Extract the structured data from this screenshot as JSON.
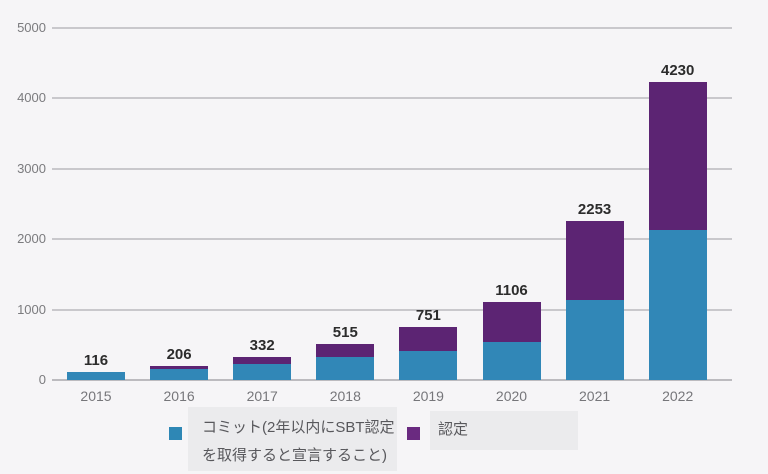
{
  "chart_data": {
    "type": "bar",
    "stacked": true,
    "title": "",
    "xlabel": "",
    "ylabel": "",
    "categories": [
      "2015",
      "2016",
      "2017",
      "2018",
      "2019",
      "2020",
      "2021",
      "2022"
    ],
    "series": [
      {
        "name": "コミット(2年以内にSBT認定を取得すると宣言すること)",
        "color": "#3187b7",
        "values": [
          116,
          160,
          230,
          320,
          415,
          545,
          1140,
          2130
        ]
      },
      {
        "name": "認定",
        "color": "#5c2473",
        "values": [
          0,
          46,
          102,
          195,
          336,
          561,
          1113,
          2100
        ]
      }
    ],
    "total_labels": [
      "116",
      "206",
      "332",
      "515",
      "751",
      "1106",
      "2253",
      "4230"
    ],
    "y_ticks": [
      0,
      1000,
      2000,
      3000,
      4000,
      5000
    ],
    "ylim": [
      0,
      5000
    ],
    "grid": true,
    "legend_position": "bottom"
  },
  "legend": {
    "items": [
      {
        "swatch_color": "#2e87b5",
        "label_line1": "コミット(2年以内にSBT認定",
        "label_line2": "を取得すると宣言すること)"
      },
      {
        "swatch_color": "#6a2a80",
        "label_line1": "認定",
        "label_line2": ""
      }
    ]
  },
  "colors": {
    "background": "#f6f5f7",
    "gridline": "#c9c8cc",
    "axis_label": "#7b7b7e",
    "value_label": "#2c2c2c",
    "legend_box_bg": "#ebebed",
    "bar_commit": "#3187b7",
    "bar_certified": "#5c2473"
  }
}
